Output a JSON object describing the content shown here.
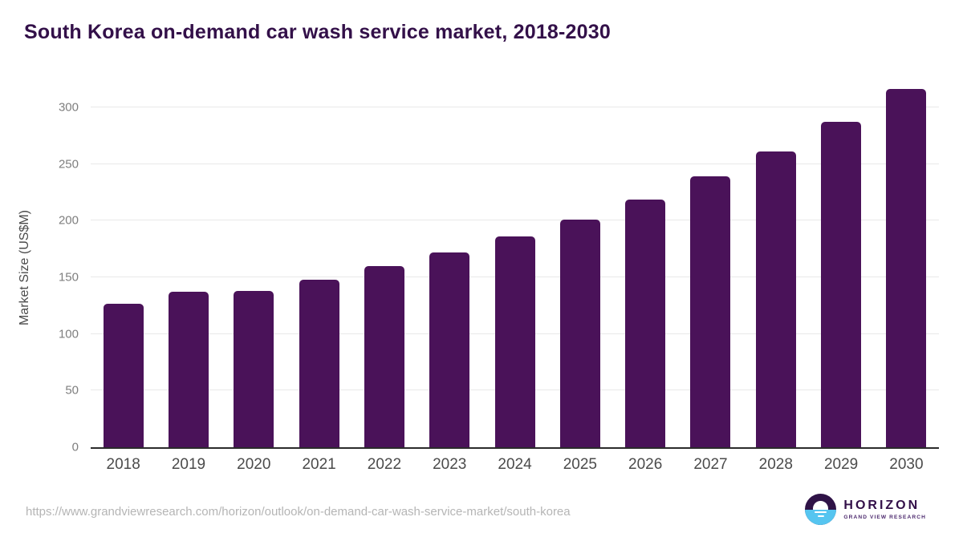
{
  "chart_data": {
    "type": "bar",
    "title": "South Korea on-demand car wash service market, 2018-2030",
    "xlabel": "",
    "ylabel": "Market Size (US$M)",
    "categories": [
      "2018",
      "2019",
      "2020",
      "2021",
      "2022",
      "2023",
      "2024",
      "2025",
      "2026",
      "2027",
      "2028",
      "2029",
      "2030"
    ],
    "values": [
      127,
      137,
      138,
      148,
      160,
      172,
      186,
      201,
      219,
      239,
      261,
      287,
      316
    ],
    "ylim": [
      0,
      317
    ],
    "yticks": [
      0,
      50,
      100,
      150,
      200,
      250,
      300
    ],
    "grid": true,
    "legend": "none",
    "bar_color": "#4a1259",
    "title_color": "#331049",
    "grid_color": "#e9e9e9",
    "axis_color": "#2b2b2b"
  },
  "footer": {
    "source_url": "https://www.grandviewresearch.com/horizon/outlook/on-demand-car-wash-service-market/south-korea",
    "logo": {
      "name": "HORIZON",
      "subtitle": "GRAND VIEW RESEARCH",
      "icon": "sun-over-horizon-icon",
      "brand_purple": "#2f1347",
      "brand_blue": "#56c5f0"
    }
  }
}
